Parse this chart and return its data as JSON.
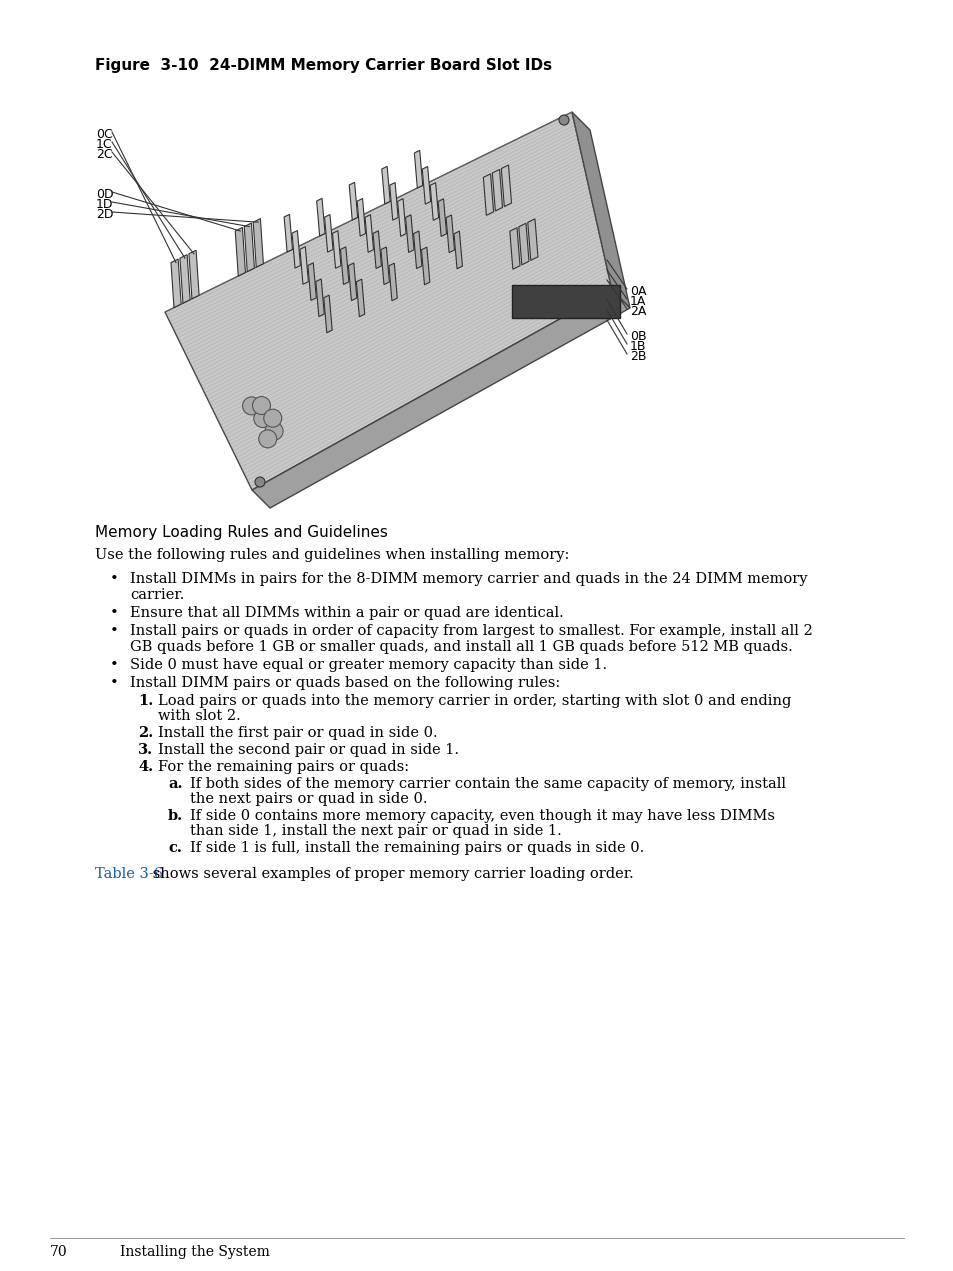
{
  "figure_title": "Figure  3-10  24-DIMM Memory Carrier Board Slot IDs",
  "section_heading": "Memory Loading Rules and Guidelines",
  "intro_text": "Use the following rules and guidelines when installing memory:",
  "bullet1_line1": "Install DIMMs in pairs for the 8-DIMM memory carrier and quads in the 24 DIMM memory",
  "bullet1_line2": "carrier.",
  "bullet2": "Ensure that all DIMMs within a pair or quad are identical.",
  "bullet3_line1": "Install pairs or quads in order of capacity from largest to smallest. For example, install all 2",
  "bullet3_line2": "GB quads before 1 GB or smaller quads, and install all 1 GB quads before 512 MB quads.",
  "bullet4": "Side 0 must have equal or greater memory capacity than side 1.",
  "bullet5": "Install DIMM pairs or quads based on the following rules:",
  "num1_line1": "Load pairs or quads into the memory carrier in order, starting with slot 0 and ending",
  "num1_line2": "with slot 2.",
  "num2": "Install the first pair or quad in side 0.",
  "num3": "Install the second pair or quad in side 1.",
  "num4": "For the remaining pairs or quads:",
  "let_a_line1": "If both sides of the memory carrier contain the same capacity of memory, install",
  "let_a_line2": "the next pairs or quad in side 0.",
  "let_b_line1": "If side 0 contains more memory capacity, even though it may have less DIMMs",
  "let_b_line2": "than side 1, install the next pair or quad in side 1.",
  "let_c": "If side 1 is full, install the remaining pairs or quads in side 0.",
  "footer_blue": "Table 3-6",
  "footer_rest": " shows several examples of proper memory carrier loading order.",
  "page_num": "70",
  "page_text": "Installing the System",
  "bg_color": "#ffffff",
  "text_color": "#000000",
  "blue_color": "#1a5fa8",
  "label_0C": "0C",
  "label_1C": "1C",
  "label_2C": "2C",
  "label_0D": "0D",
  "label_1D": "1D",
  "label_2D": "2D",
  "label_0A": "0A",
  "label_1A": "1A",
  "label_2A": "2A",
  "label_0B": "0B",
  "label_1B": "1B",
  "label_2B": "2B"
}
